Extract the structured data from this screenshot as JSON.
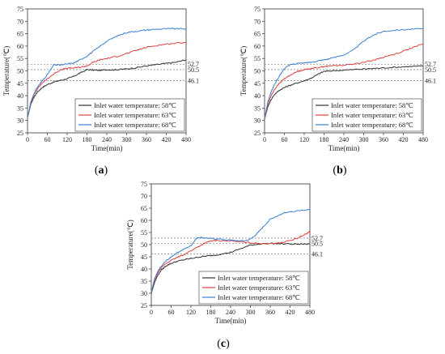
{
  "figure": {
    "panel_labels": [
      "(a)",
      "(b)",
      "(c)"
    ]
  },
  "chart_data": [
    {
      "type": "line",
      "panel": "(a)",
      "xlabel": "Time(min)",
      "ylabel": "Temperature(℃)",
      "xlim": [
        0,
        480
      ],
      "ylim": [
        25,
        75
      ],
      "xticks": [
        0,
        60,
        120,
        180,
        240,
        300,
        360,
        420,
        480
      ],
      "yticks": [
        25,
        30,
        35,
        40,
        45,
        50,
        55,
        60,
        65,
        70,
        75
      ],
      "legend_position": "bottom-right",
      "reference_lines": [
        {
          "y": 52.7,
          "label": "52.7"
        },
        {
          "y": 50.5,
          "label": "50.5"
        },
        {
          "y": 46.1,
          "label": "46.1"
        }
      ],
      "series": [
        {
          "name": "Inlet water temperature: 58℃",
          "color": "#333333",
          "x": [
            0,
            10,
            20,
            30,
            45,
            60,
            80,
            100,
            120,
            140,
            160,
            180,
            200,
            220,
            240,
            260,
            280,
            300,
            330,
            360,
            390,
            420,
            450,
            480
          ],
          "y": [
            31,
            36.5,
            39.5,
            41.5,
            43.3,
            44.5,
            45.5,
            46.2,
            46.8,
            47.8,
            49.2,
            50.5,
            50.3,
            50.2,
            50.5,
            50.4,
            50.6,
            50.8,
            51.3,
            52,
            52.5,
            53,
            53.5,
            54.5
          ]
        },
        {
          "name": "Inlet water temperature: 63℃",
          "color": "#e04040",
          "x": [
            0,
            10,
            20,
            30,
            45,
            60,
            80,
            100,
            120,
            140,
            160,
            180,
            200,
            220,
            240,
            270,
            300,
            330,
            360,
            390,
            420,
            450,
            480
          ],
          "y": [
            31,
            37,
            40.5,
            42.8,
            45.2,
            46.8,
            48.8,
            50.5,
            51,
            51.2,
            51.5,
            52,
            53.5,
            54.5,
            55,
            55.8,
            57,
            58.3,
            59.5,
            60.2,
            60.8,
            61.2,
            61.5
          ]
        },
        {
          "name": "Inlet water temperature: 68℃",
          "color": "#3a7fd6",
          "x": [
            0,
            10,
            20,
            30,
            45,
            60,
            80,
            100,
            120,
            140,
            160,
            180,
            200,
            220,
            240,
            270,
            300,
            330,
            360,
            390,
            420,
            450,
            480
          ],
          "y": [
            31,
            37.5,
            41,
            43.5,
            46,
            48.5,
            52.5,
            52.3,
            52.8,
            53.2,
            54.5,
            56,
            58,
            60,
            62,
            64,
            65.5,
            66,
            66.5,
            66.8,
            67,
            67,
            67
          ]
        }
      ]
    },
    {
      "type": "line",
      "panel": "(b)",
      "xlabel": "Time(min)",
      "ylabel": "Temperature(℃)",
      "xlim": [
        0,
        480
      ],
      "ylim": [
        25,
        75
      ],
      "xticks": [
        0,
        60,
        120,
        180,
        240,
        300,
        360,
        420,
        480
      ],
      "yticks": [
        25,
        30,
        35,
        40,
        45,
        50,
        55,
        60,
        65,
        70,
        75
      ],
      "legend_position": "bottom-right",
      "reference_lines": [
        {
          "y": 52.7,
          "label": "52.7"
        },
        {
          "y": 50.5,
          "label": "50.5"
        },
        {
          "y": 46.1,
          "label": "46.1"
        }
      ],
      "series": [
        {
          "name": "Inlet water temperature: 58℃",
          "color": "#333333",
          "x": [
            0,
            10,
            20,
            30,
            45,
            60,
            80,
            100,
            120,
            140,
            160,
            180,
            200,
            240,
            280,
            320,
            360,
            400,
            440,
            480
          ],
          "y": [
            30.5,
            35.5,
            38.5,
            40.5,
            42.2,
            43.3,
            44.3,
            45.2,
            46,
            47,
            48.5,
            49.8,
            50,
            50.3,
            50.6,
            50.9,
            51.2,
            51.5,
            51.8,
            52
          ]
        },
        {
          "name": "Inlet water temperature: 63℃",
          "color": "#e04040",
          "x": [
            0,
            10,
            20,
            30,
            45,
            60,
            80,
            100,
            120,
            140,
            160,
            180,
            200,
            240,
            280,
            320,
            360,
            400,
            440,
            480
          ],
          "y": [
            30.5,
            36.5,
            40,
            42.5,
            45,
            46.8,
            48.5,
            49.8,
            50.5,
            51,
            51.3,
            51.8,
            52,
            52.3,
            53,
            54,
            55.5,
            57,
            59,
            60.8
          ]
        },
        {
          "name": "Inlet water temperature: 68℃",
          "color": "#3a7fd6",
          "x": [
            0,
            10,
            20,
            30,
            45,
            60,
            80,
            100,
            120,
            140,
            160,
            180,
            200,
            240,
            270,
            300,
            330,
            360,
            400,
            440,
            480
          ],
          "y": [
            31,
            37.5,
            41.5,
            44.5,
            48,
            51,
            52.6,
            53,
            53.2,
            53.5,
            54,
            54.5,
            55,
            56.5,
            58.5,
            62,
            64.5,
            66,
            66.5,
            66.8,
            67
          ]
        }
      ]
    },
    {
      "type": "line",
      "panel": "(c)",
      "xlabel": "Time(min)",
      "ylabel": "Temperature(℃)",
      "xlim": [
        0,
        480
      ],
      "ylim": [
        25,
        75
      ],
      "xticks": [
        0,
        60,
        120,
        180,
        240,
        300,
        360,
        420,
        480
      ],
      "yticks": [
        25,
        30,
        35,
        40,
        45,
        50,
        55,
        60,
        65,
        70,
        75
      ],
      "legend_position": "bottom-right",
      "reference_lines": [
        {
          "y": 52.7,
          "label": "52.7"
        },
        {
          "y": 50.5,
          "label": "50.5"
        },
        {
          "y": 46.1,
          "label": "46.1"
        }
      ],
      "series": [
        {
          "name": "Inlet water temperature: 58℃",
          "color": "#333333",
          "x": [
            0,
            10,
            20,
            30,
            45,
            60,
            80,
            100,
            120,
            140,
            160,
            180,
            200,
            240,
            270,
            300,
            330,
            360,
            400,
            440,
            480
          ],
          "y": [
            30,
            34.5,
            37.5,
            39.5,
            41.3,
            42.3,
            43.2,
            43.8,
            44.3,
            44.8,
            45.2,
            45.5,
            45.8,
            46.8,
            48.3,
            49.8,
            50.3,
            50.5,
            50.3,
            50.2,
            50.2
          ]
        },
        {
          "name": "Inlet water temperature: 63℃",
          "color": "#e04040",
          "x": [
            0,
            10,
            20,
            30,
            45,
            60,
            80,
            100,
            120,
            140,
            160,
            180,
            200,
            240,
            280,
            320,
            360,
            400,
            440,
            470,
            480
          ],
          "y": [
            30.5,
            35.5,
            38.5,
            40.5,
            42.3,
            43.5,
            44.8,
            46,
            47.5,
            49,
            50.5,
            51.5,
            51.7,
            51.5,
            51,
            50.5,
            50.5,
            51,
            52.5,
            54.5,
            55.5
          ]
        },
        {
          "name": "Inlet water temperature: 68℃",
          "color": "#3a7fd6",
          "x": [
            0,
            10,
            20,
            30,
            45,
            60,
            80,
            100,
            120,
            130,
            140,
            160,
            180,
            200,
            240,
            280,
            300,
            320,
            340,
            360,
            400,
            440,
            480
          ],
          "y": [
            30.5,
            36,
            39,
            41.2,
            43.3,
            45,
            46.8,
            48.2,
            49.5,
            51.5,
            53,
            52.8,
            52.5,
            52.3,
            51.8,
            51.5,
            52.2,
            54.5,
            57.5,
            60.5,
            63,
            64,
            64.5
          ]
        }
      ]
    }
  ]
}
